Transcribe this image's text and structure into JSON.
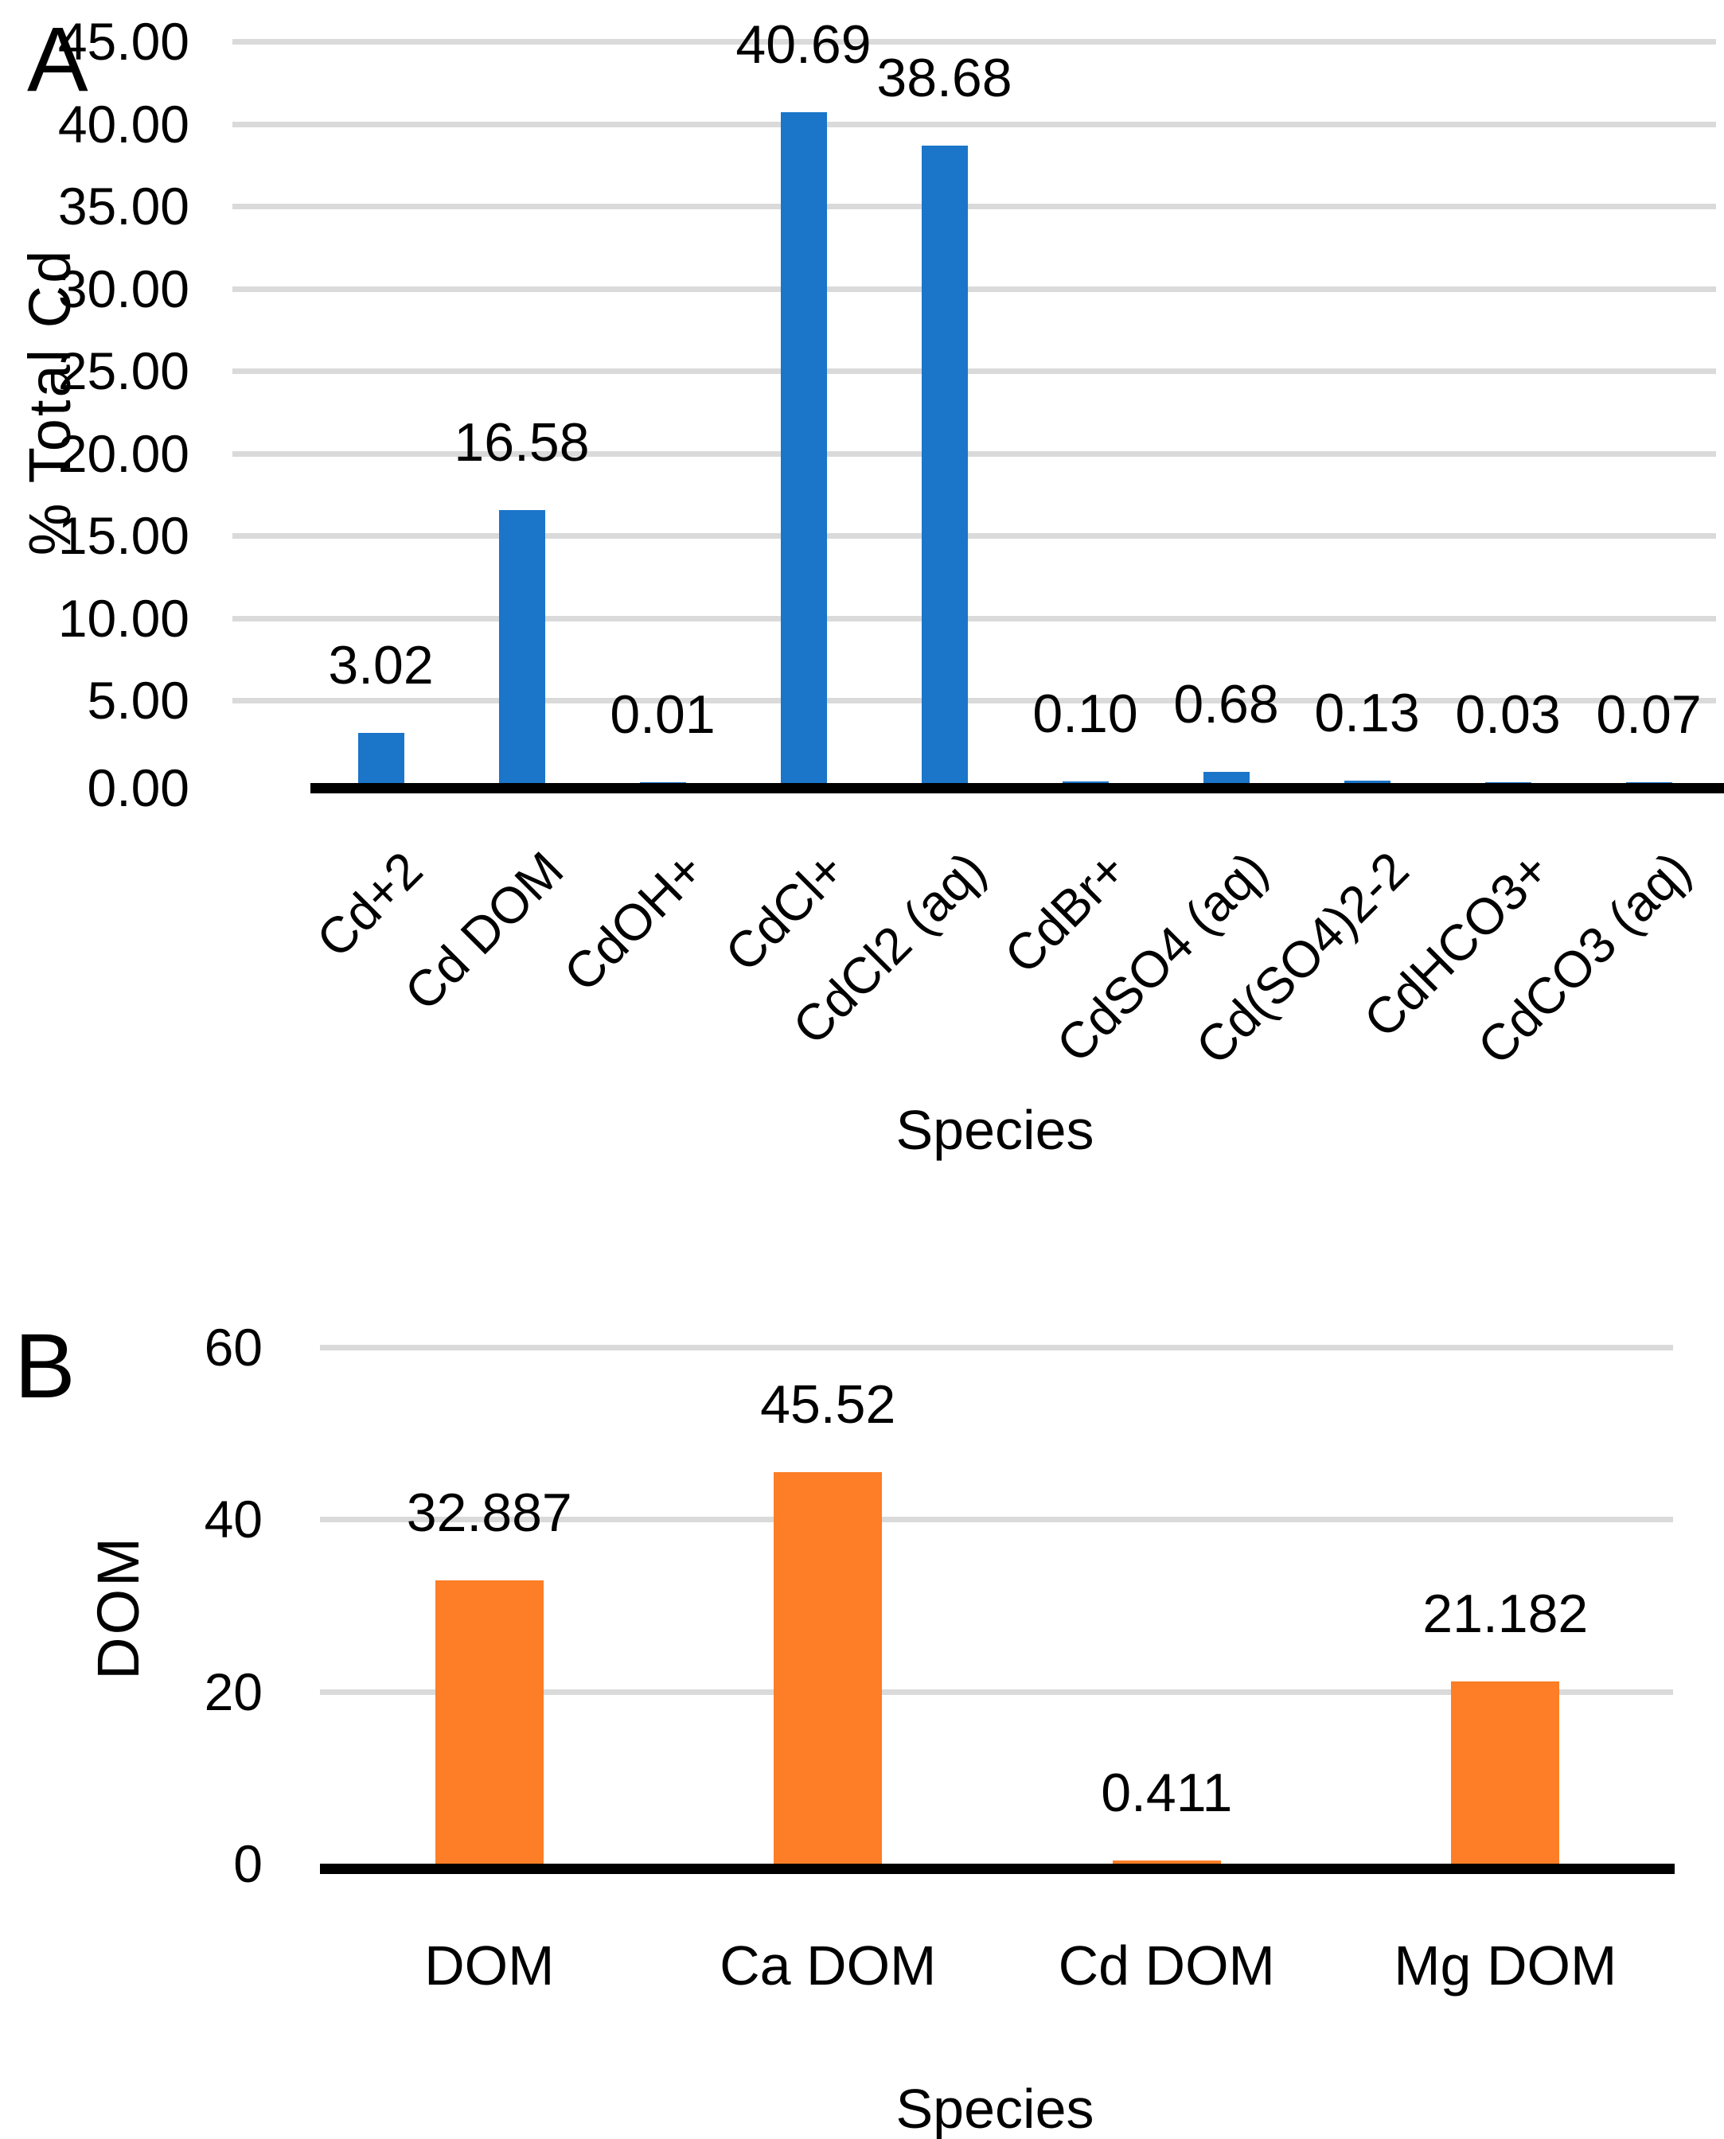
{
  "figure": {
    "panels": [
      "A",
      "B"
    ]
  },
  "chart_data": [
    {
      "panel": "A",
      "type": "bar",
      "title": "",
      "xlabel": "Species",
      "ylabel": "% Total Cd",
      "categories": [
        "Cd+2",
        "Cd DOM",
        "CdOH+",
        "CdCl+",
        "CdCl2 (aq)",
        "CdBr+",
        "CdSO4 (aq)",
        "Cd(SO4)2-2",
        "CdHCO3+",
        "CdCO3 (aq)"
      ],
      "values": [
        3.02,
        16.58,
        0.01,
        40.69,
        38.68,
        0.1,
        0.68,
        0.13,
        0.03,
        0.07
      ],
      "data_labels": [
        "3.02",
        "16.58",
        "0.01",
        "40.69",
        "38.68",
        "0.10",
        "0.68",
        "0.13",
        "0.03",
        "0.07"
      ],
      "ylim": [
        0,
        45
      ],
      "ytick_step": 5,
      "ytick_labels": [
        "0.00",
        "5.00",
        "10.00",
        "15.00",
        "20.00",
        "25.00",
        "30.00",
        "35.00",
        "40.00",
        "45.00"
      ],
      "x_label_rotation_deg": -45,
      "grid": true,
      "legend": "none",
      "bar_color": "#1B75C9",
      "gridline_color": "#DADADA",
      "axis_color": "#000000"
    },
    {
      "panel": "B",
      "type": "bar",
      "title": "",
      "xlabel": "Species",
      "ylabel": "DOM",
      "categories": [
        "DOM",
        "Ca DOM",
        "Cd DOM",
        "Mg DOM"
      ],
      "values": [
        32.887,
        45.52,
        0.411,
        21.182
      ],
      "data_labels": [
        "32.887",
        "45.52",
        "0.411",
        "21.182"
      ],
      "ylim": [
        0,
        60
      ],
      "ytick_step": 20,
      "ytick_labels": [
        "0",
        "20",
        "40",
        "60"
      ],
      "x_label_rotation_deg": 0,
      "grid": true,
      "legend": "none",
      "bar_color": "#FD7E26",
      "gridline_color": "#DADADA",
      "axis_color": "#000000"
    }
  ]
}
